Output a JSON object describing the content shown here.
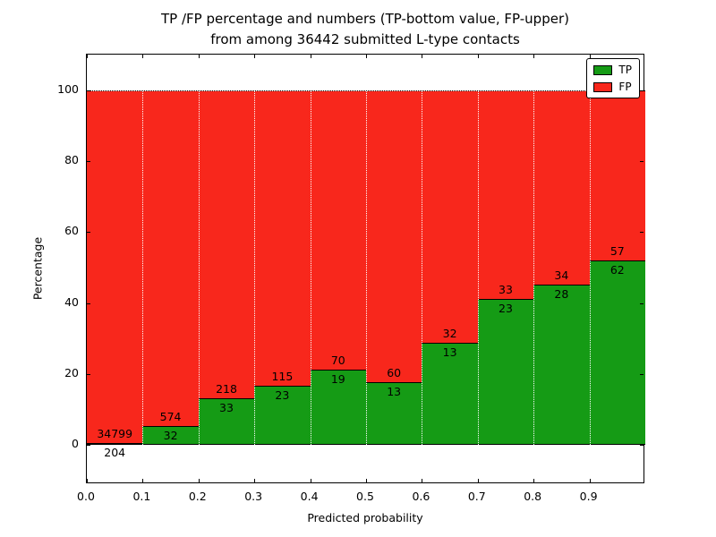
{
  "chart_data": {
    "type": "bar",
    "stacked": true,
    "title_line1": "TP /FP percentage and numbers (TP-bottom value, FP-upper)",
    "title_line2": "from among 36442 submitted L-type contacts",
    "xlabel": "Predicted probability",
    "ylabel": "Percentage",
    "xlim": [
      0,
      1
    ],
    "ylim": [
      -11,
      110
    ],
    "xticks": [
      "0.0",
      "0.1",
      "0.2",
      "0.3",
      "0.4",
      "0.5",
      "0.6",
      "0.7",
      "0.8",
      "0.9"
    ],
    "yticks": [
      0,
      20,
      40,
      60,
      80,
      100
    ],
    "grid": "white dotted vertical lines at bin edges",
    "legend_position": "upper right",
    "bins": [
      {
        "x_start": 0.0,
        "x_end": 0.1,
        "tp_count": 204,
        "fp_count": 34799,
        "tp_pct": 0.58,
        "fp_pct": 99.42
      },
      {
        "x_start": 0.1,
        "x_end": 0.2,
        "tp_count": 32,
        "fp_count": 574,
        "tp_pct": 5.28,
        "fp_pct": 94.72
      },
      {
        "x_start": 0.2,
        "x_end": 0.3,
        "tp_count": 33,
        "fp_count": 218,
        "tp_pct": 13.15,
        "fp_pct": 86.85
      },
      {
        "x_start": 0.3,
        "x_end": 0.4,
        "tp_count": 23,
        "fp_count": 115,
        "tp_pct": 16.67,
        "fp_pct": 83.33
      },
      {
        "x_start": 0.4,
        "x_end": 0.5,
        "tp_count": 19,
        "fp_count": 70,
        "tp_pct": 21.35,
        "fp_pct": 78.65
      },
      {
        "x_start": 0.5,
        "x_end": 0.6,
        "tp_count": 13,
        "fp_count": 60,
        "tp_pct": 17.81,
        "fp_pct": 82.19
      },
      {
        "x_start": 0.6,
        "x_end": 0.7,
        "tp_count": 13,
        "fp_count": 32,
        "tp_pct": 28.89,
        "fp_pct": 71.11
      },
      {
        "x_start": 0.7,
        "x_end": 0.8,
        "tp_count": 23,
        "fp_count": 33,
        "tp_pct": 41.07,
        "fp_pct": 58.93
      },
      {
        "x_start": 0.8,
        "x_end": 0.9,
        "tp_count": 28,
        "fp_count": 34,
        "tp_pct": 45.16,
        "fp_pct": 54.84
      },
      {
        "x_start": 0.9,
        "x_end": 1.0,
        "tp_count": 62,
        "fp_count": 57,
        "tp_pct": 52.1,
        "fp_pct": 47.9
      }
    ],
    "legend": [
      {
        "label": "TP",
        "color": "#159b15"
      },
      {
        "label": "FP",
        "color": "#f8271c"
      }
    ],
    "colors": {
      "tp": "#159b15",
      "fp": "#f8271c",
      "grid": "#ffffff",
      "edge": "#000000"
    }
  }
}
